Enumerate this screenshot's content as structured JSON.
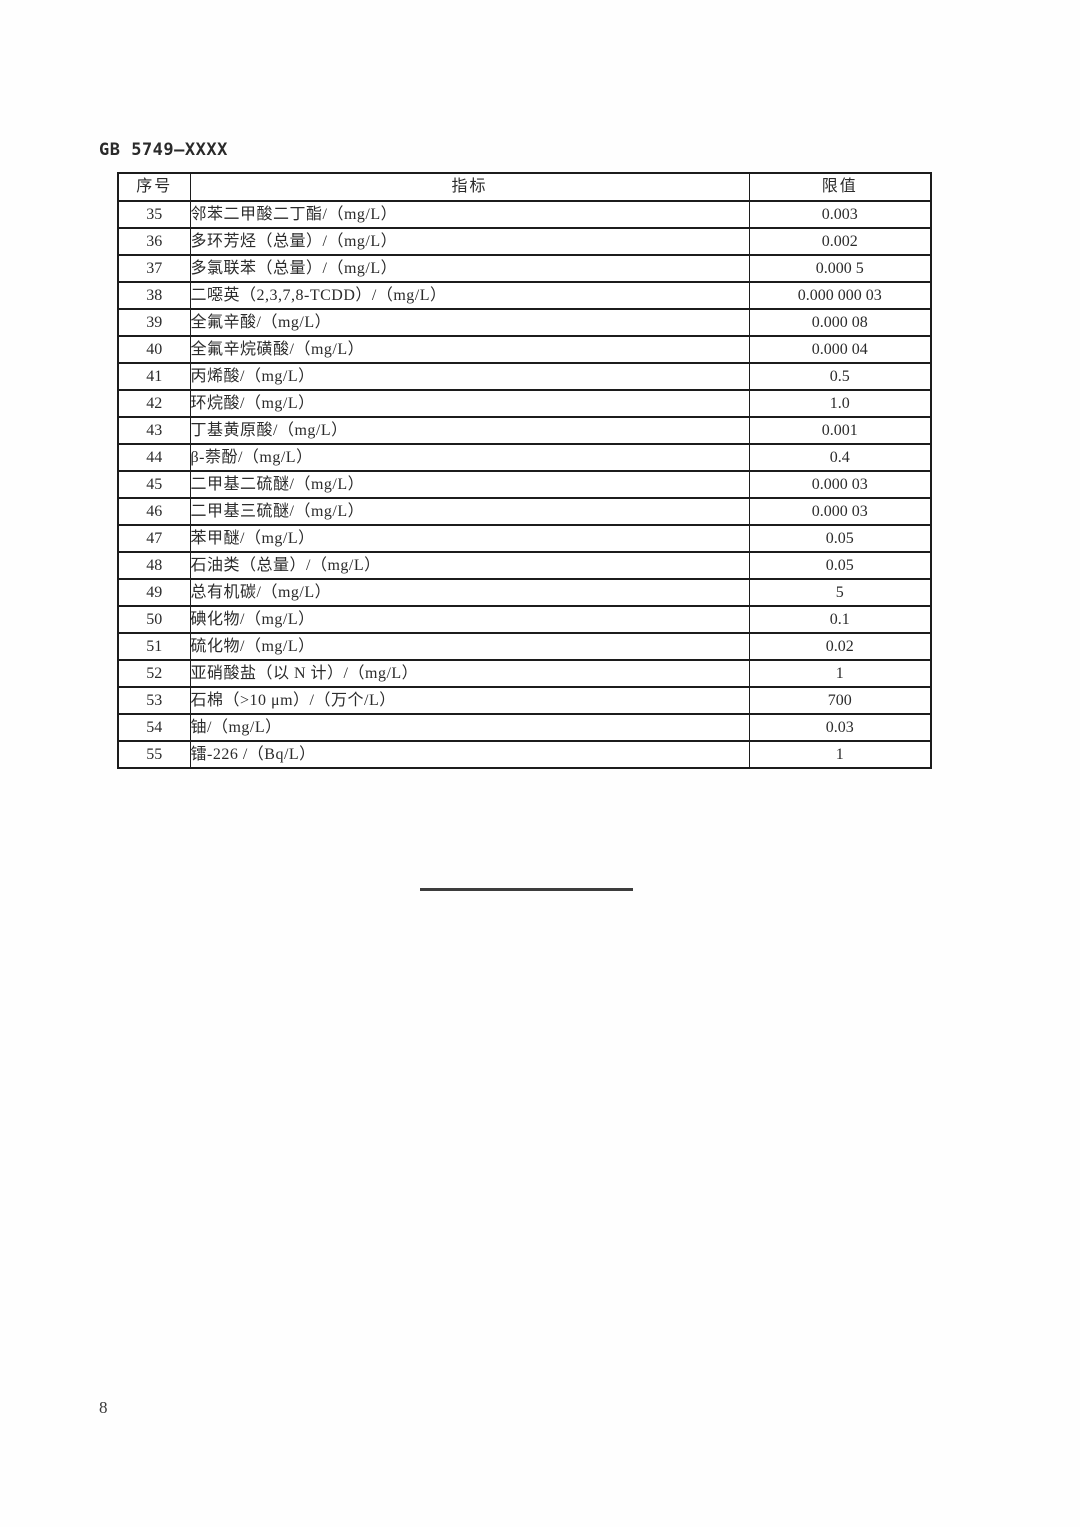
{
  "page": {
    "doc_code": "GB 5749—XXXX",
    "page_number": "8"
  },
  "table": {
    "headers": [
      "序号",
      "指标",
      "限值"
    ],
    "rows": [
      {
        "no": "35",
        "indicator": "邻苯二甲酸二丁酯/（mg/L）",
        "limit": "0.003"
      },
      {
        "no": "36",
        "indicator": "多环芳烃（总量）/（mg/L）",
        "limit": "0.002"
      },
      {
        "no": "37",
        "indicator": "多氯联苯（总量）/（mg/L）",
        "limit": "0.000 5"
      },
      {
        "no": "38",
        "indicator": "二噁英（2,3,7,8-TCDD）/（mg/L）",
        "limit": "0.000 000 03"
      },
      {
        "no": "39",
        "indicator": "全氟辛酸/（mg/L）",
        "limit": "0.000 08"
      },
      {
        "no": "40",
        "indicator": "全氟辛烷磺酸/（mg/L）",
        "limit": "0.000 04"
      },
      {
        "no": "41",
        "indicator": "丙烯酸/（mg/L）",
        "limit": "0.5"
      },
      {
        "no": "42",
        "indicator": "环烷酸/（mg/L）",
        "limit": "1.0"
      },
      {
        "no": "43",
        "indicator": "丁基黄原酸/（mg/L）",
        "limit": "0.001"
      },
      {
        "no": "44",
        "indicator": "β-萘酚/（mg/L）",
        "limit": "0.4"
      },
      {
        "no": "45",
        "indicator": "二甲基二硫醚/（mg/L）",
        "limit": "0.000 03"
      },
      {
        "no": "46",
        "indicator": "二甲基三硫醚/（mg/L）",
        "limit": "0.000 03"
      },
      {
        "no": "47",
        "indicator": "苯甲醚/（mg/L）",
        "limit": "0.05"
      },
      {
        "no": "48",
        "indicator": "石油类（总量）/（mg/L）",
        "limit": "0.05"
      },
      {
        "no": "49",
        "indicator": "总有机碳/（mg/L）",
        "limit": "5"
      },
      {
        "no": "50",
        "indicator": "碘化物/（mg/L）",
        "limit": "0.1"
      },
      {
        "no": "51",
        "indicator": "硫化物/（mg/L）",
        "limit": "0.02"
      },
      {
        "no": "52",
        "indicator": "亚硝酸盐（以 N 计）/（mg/L）",
        "limit": "1"
      },
      {
        "no": "53",
        "indicator": "石棉（>10 μm）/（万个/L）",
        "limit": "700"
      },
      {
        "no": "54",
        "indicator": "铀/（mg/L）",
        "limit": "0.03"
      },
      {
        "no": "55",
        "indicator": "镭-226 /（Bq/L）",
        "limit": "1"
      }
    ]
  }
}
